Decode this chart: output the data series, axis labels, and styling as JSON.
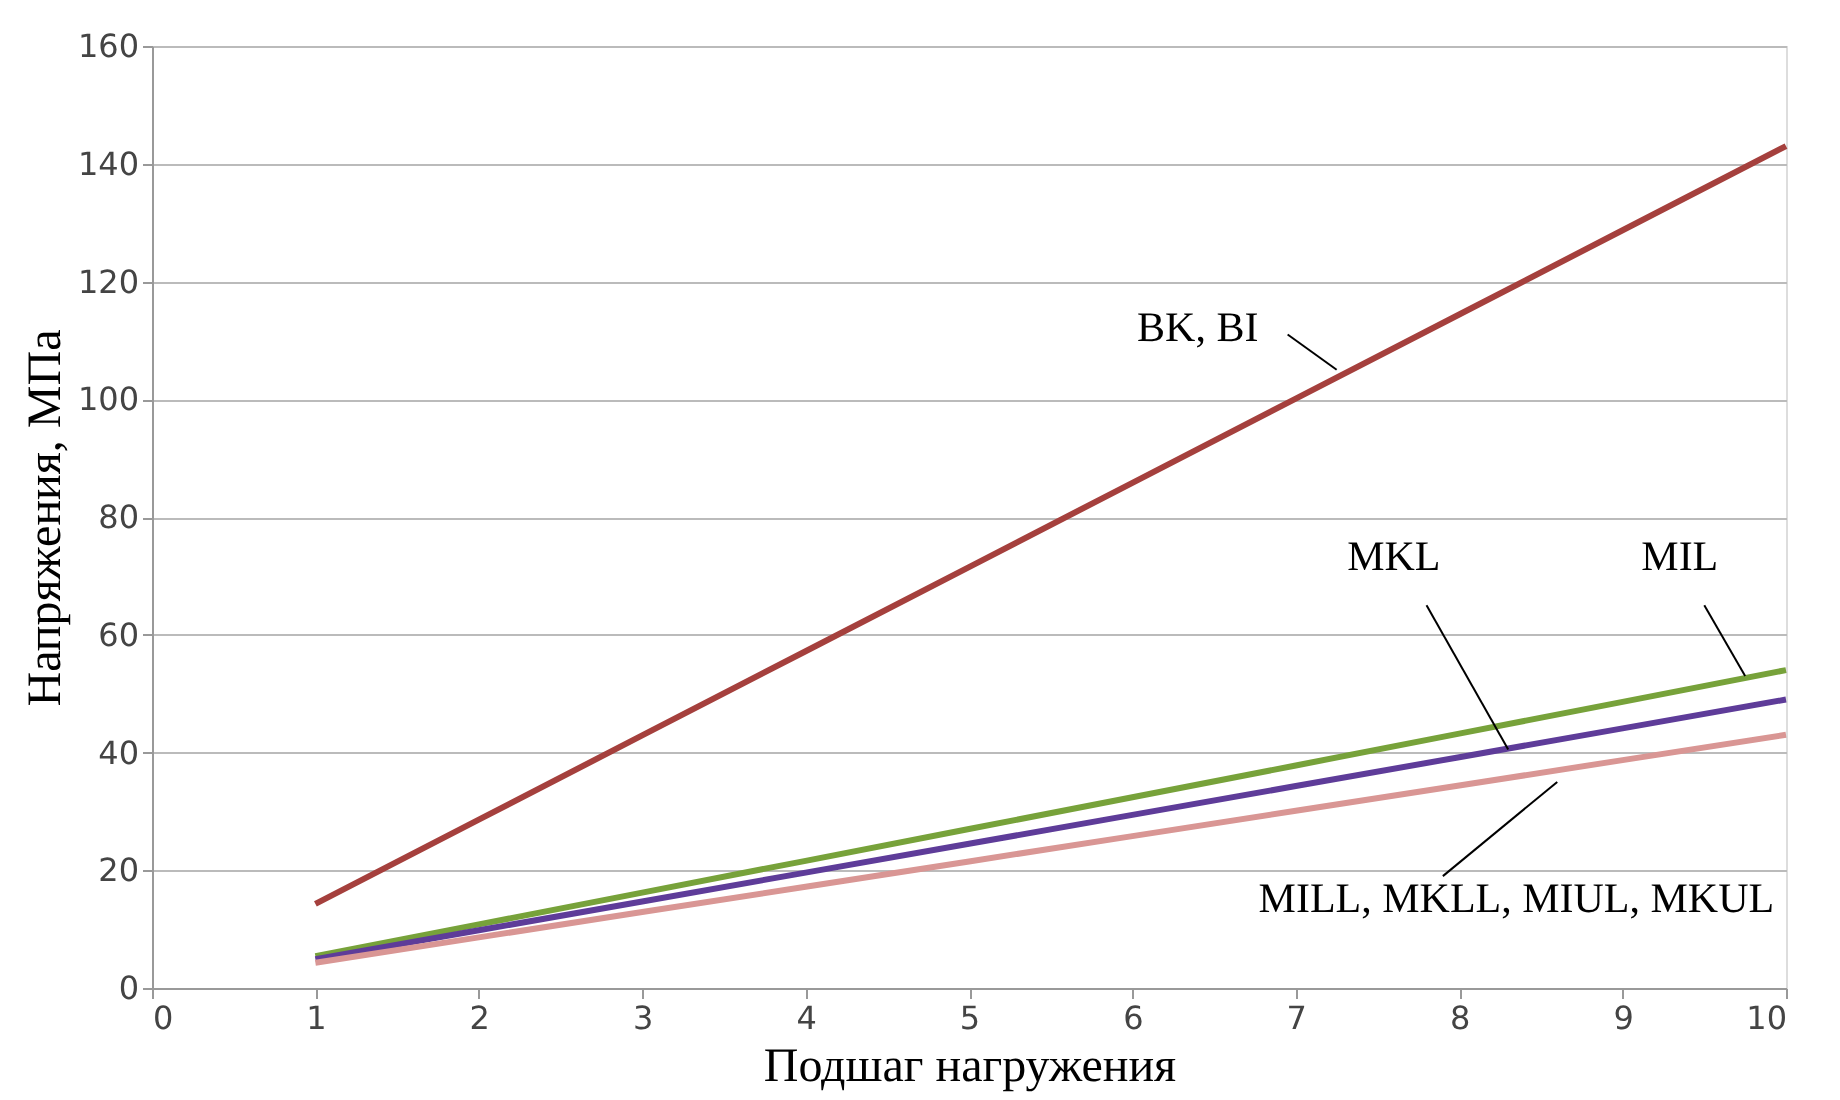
{
  "chart_data": {
    "type": "line",
    "xlabel": "Подшаг нагружения",
    "ylabel": "Напряжения, МПа",
    "x": [
      1,
      2,
      3,
      4,
      5,
      6,
      7,
      8,
      9,
      10
    ],
    "xlim": [
      0,
      10
    ],
    "xticks": [
      0,
      1,
      2,
      3,
      4,
      5,
      6,
      7,
      8,
      9,
      10
    ],
    "ylim": [
      0,
      160
    ],
    "yticks": [
      0,
      20,
      40,
      60,
      80,
      100,
      120,
      140,
      160
    ],
    "grid": "y",
    "marker": "none",
    "line_style": "solid",
    "legend": false,
    "series": [
      {
        "name": "BK, BI",
        "color": "#a5403d",
        "values": [
          14.3,
          28.6,
          42.9,
          57.2,
          71.5,
          85.8,
          100.1,
          114.4,
          128.7,
          143
        ]
      },
      {
        "name": "MIL",
        "color": "#77a23a",
        "values": [
          5.4,
          10.8,
          16.2,
          21.6,
          27,
          32.4,
          37.8,
          43.2,
          48.6,
          54
        ]
      },
      {
        "name": "MKL",
        "color": "#5e3c99",
        "values": [
          4.9,
          9.8,
          14.7,
          19.6,
          24.5,
          29.4,
          34.3,
          39.2,
          44.1,
          49
        ]
      },
      {
        "name": "MILL, MKLL, MIUL, MKUL",
        "color": "#d99694",
        "values": [
          4.3,
          8.6,
          12.9,
          17.2,
          21.5,
          25.8,
          30.1,
          34.4,
          38.7,
          43
        ]
      }
    ]
  }
}
